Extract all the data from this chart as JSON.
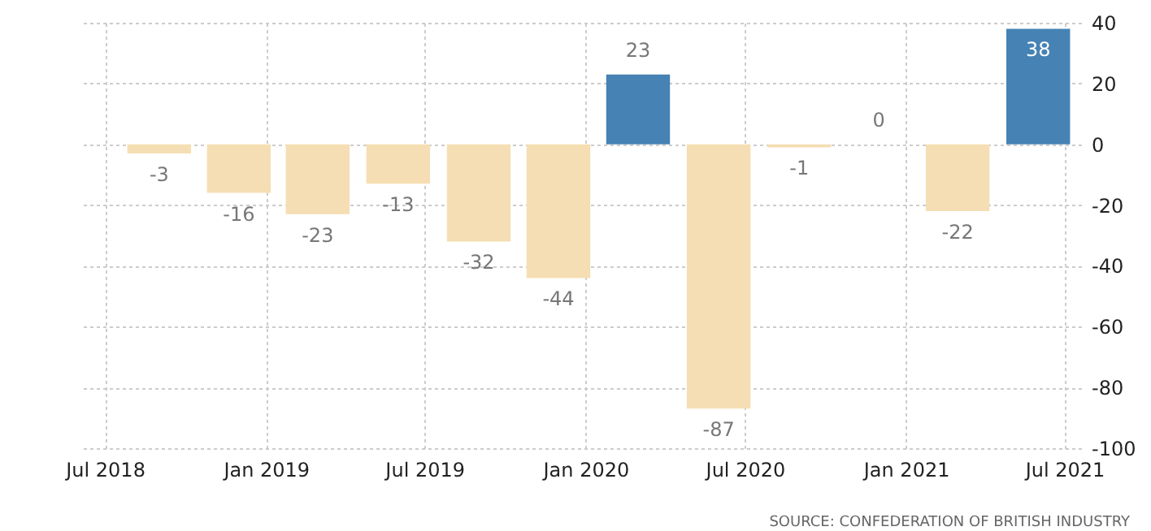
{
  "chart_data": {
    "type": "bar",
    "x": [
      "2018-09",
      "2018-12",
      "2019-03",
      "2019-06",
      "2019-09",
      "2019-12",
      "2020-03",
      "2020-06",
      "2020-09",
      "2020-12",
      "2021-03",
      "2021-06"
    ],
    "values": [
      -3,
      -16,
      -23,
      -13,
      -32,
      -44,
      23,
      -87,
      -1,
      0,
      -22,
      38
    ],
    "colors": [
      "#f5deb3",
      "#f5deb3",
      "#f5deb3",
      "#f5deb3",
      "#f5deb3",
      "#f5deb3",
      "#4682b4",
      "#f5deb3",
      "#f5deb3",
      "#f5deb3",
      "#f5deb3",
      "#4682b4"
    ],
    "data_labels": true,
    "xlim": [
      "2018-06-04",
      "2021-07-20"
    ],
    "xticks": [
      {
        "value": "2018-07",
        "label": "Jul 2018"
      },
      {
        "value": "2019-01",
        "label": "Jan 2019"
      },
      {
        "value": "2019-07",
        "label": "Jul 2019"
      },
      {
        "value": "2020-01",
        "label": "Jan 2020"
      },
      {
        "value": "2020-07",
        "label": "Jul 2020"
      },
      {
        "value": "2021-01",
        "label": "Jan 2021"
      },
      {
        "value": "2021-07",
        "label": "Jul 2021"
      }
    ],
    "ylim": [
      -100,
      40
    ],
    "yticks": [
      -100,
      -80,
      -60,
      -40,
      -20,
      0,
      20,
      40
    ],
    "grid": true,
    "annotations": [
      "SOURCE: CONFEDERATION OF BRITISH INDUSTRY"
    ]
  }
}
